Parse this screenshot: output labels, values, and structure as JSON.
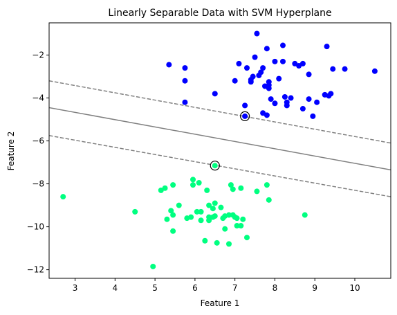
{
  "chart_data": {
    "type": "scatter",
    "title": "Linearly Separable Data with SVM Hyperplane",
    "xlabel": "Feature 1",
    "ylabel": "Feature 2",
    "xlim": [
      2.35,
      10.9
    ],
    "ylim": [
      -12.4,
      -0.5
    ],
    "xticks": [
      3,
      4,
      5,
      6,
      7,
      8,
      9,
      10
    ],
    "yticks": [
      -12,
      -10,
      -8,
      -6,
      -4,
      -2
    ],
    "grid": false,
    "colors": {
      "class_a": "#0000ff",
      "class_b": "#00ff80",
      "hyperplane": "#808080",
      "support_vector_ring": "#000000"
    },
    "series": [
      {
        "values": [
          [
            7.55,
            -1.0
          ],
          [
            8.2,
            -1.55
          ],
          [
            9.3,
            -1.6
          ],
          [
            7.8,
            -1.7
          ],
          [
            7.5,
            -2.1
          ],
          [
            8.2,
            -2.3
          ],
          [
            8.0,
            -2.3
          ],
          [
            7.1,
            -2.4
          ],
          [
            7.3,
            -2.6
          ],
          [
            8.5,
            -2.4
          ],
          [
            8.7,
            -2.4
          ],
          [
            8.6,
            -2.5
          ],
          [
            5.35,
            -2.45
          ],
          [
            5.75,
            -2.6
          ],
          [
            7.7,
            -2.6
          ],
          [
            9.45,
            -2.65
          ],
          [
            9.75,
            -2.65
          ],
          [
            10.5,
            -2.75
          ],
          [
            7.65,
            -2.8
          ],
          [
            7.6,
            -2.95
          ],
          [
            8.85,
            -2.9
          ],
          [
            7.45,
            -3.0
          ],
          [
            7.4,
            -3.15
          ],
          [
            8.1,
            -3.1
          ],
          [
            7.4,
            -3.25
          ],
          [
            5.75,
            -3.2
          ],
          [
            7.0,
            -3.2
          ],
          [
            7.85,
            -3.25
          ],
          [
            7.85,
            -3.4
          ],
          [
            7.85,
            -3.55
          ],
          [
            7.75,
            -3.45
          ],
          [
            9.4,
            -3.8
          ],
          [
            9.25,
            -3.85
          ],
          [
            8.25,
            -3.95
          ],
          [
            6.5,
            -3.8
          ],
          [
            7.9,
            -4.05
          ],
          [
            8.85,
            -4.05
          ],
          [
            8.4,
            -4.0
          ],
          [
            9.35,
            -3.9
          ],
          [
            8.3,
            -4.2
          ],
          [
            8.0,
            -4.25
          ],
          [
            8.3,
            -4.35
          ],
          [
            9.05,
            -4.2
          ],
          [
            7.25,
            -4.35
          ],
          [
            5.75,
            -4.2
          ],
          [
            8.7,
            -4.5
          ],
          [
            7.7,
            -4.7
          ],
          [
            7.8,
            -4.8
          ],
          [
            8.95,
            -4.85
          ],
          [
            7.25,
            -4.85
          ]
        ]
      },
      {
        "values": [
          [
            2.7,
            -8.6
          ],
          [
            4.5,
            -9.3
          ],
          [
            4.95,
            -11.85
          ],
          [
            5.15,
            -8.3
          ],
          [
            5.25,
            -8.2
          ],
          [
            5.45,
            -8.05
          ],
          [
            5.4,
            -9.25
          ],
          [
            5.45,
            -9.45
          ],
          [
            5.6,
            -9.0
          ],
          [
            5.3,
            -9.65
          ],
          [
            5.45,
            -10.2
          ],
          [
            5.8,
            -9.6
          ],
          [
            5.9,
            -9.55
          ],
          [
            5.95,
            -8.05
          ],
          [
            5.95,
            -7.8
          ],
          [
            6.1,
            -7.95
          ],
          [
            6.05,
            -9.3
          ],
          [
            6.15,
            -9.3
          ],
          [
            6.15,
            -9.7
          ],
          [
            6.25,
            -10.65
          ],
          [
            6.3,
            -8.3
          ],
          [
            6.35,
            -9.0
          ],
          [
            6.35,
            -9.55
          ],
          [
            6.35,
            -9.7
          ],
          [
            6.45,
            -9.15
          ],
          [
            6.5,
            -7.15
          ],
          [
            6.5,
            -8.9
          ],
          [
            6.45,
            -9.55
          ],
          [
            6.5,
            -9.5
          ],
          [
            6.55,
            -10.75
          ],
          [
            6.65,
            -9.1
          ],
          [
            6.7,
            -9.6
          ],
          [
            6.75,
            -9.5
          ],
          [
            6.75,
            -10.1
          ],
          [
            6.85,
            -9.45
          ],
          [
            6.85,
            -10.8
          ],
          [
            6.9,
            -8.05
          ],
          [
            6.95,
            -8.25
          ],
          [
            6.95,
            -9.45
          ],
          [
            7.0,
            -9.55
          ],
          [
            7.05,
            -9.6
          ],
          [
            7.05,
            -9.95
          ],
          [
            7.15,
            -8.2
          ],
          [
            7.15,
            -9.95
          ],
          [
            7.2,
            -9.65
          ],
          [
            7.3,
            -10.5
          ],
          [
            7.55,
            -8.35
          ],
          [
            7.8,
            -8.05
          ],
          [
            7.85,
            -8.75
          ],
          [
            8.75,
            -9.45
          ]
        ]
      }
    ],
    "support_vectors": [
      [
        7.25,
        -4.85
      ],
      [
        6.5,
        -7.15
      ]
    ],
    "lines": [
      {
        "style": "solid",
        "points": [
          [
            2.35,
            -4.45
          ],
          [
            10.9,
            -7.35
          ]
        ]
      },
      {
        "style": "dashed",
        "points": [
          [
            2.35,
            -3.2
          ],
          [
            10.9,
            -6.1
          ]
        ]
      },
      {
        "style": "dashed",
        "points": [
          [
            2.35,
            -5.75
          ],
          [
            10.9,
            -8.6
          ]
        ]
      }
    ]
  }
}
